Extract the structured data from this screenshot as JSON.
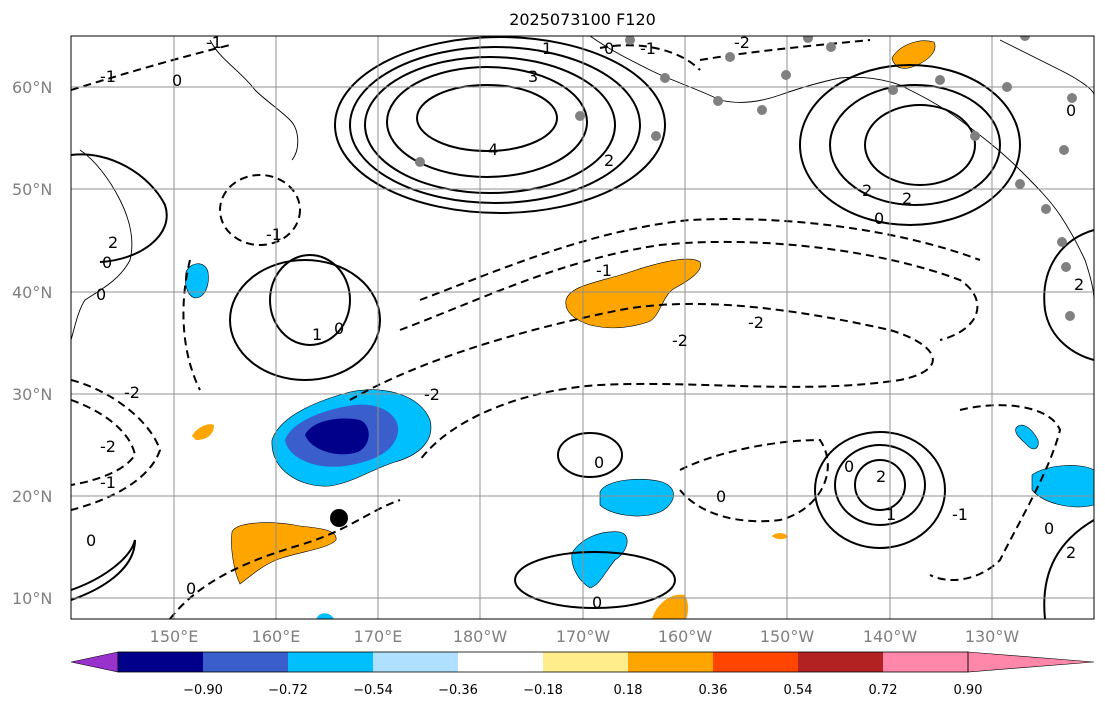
{
  "title": "2025073100 F120",
  "map": {
    "region": "North Pacific",
    "lon_labels": [
      "150°E",
      "160°E",
      "170°E",
      "180°W",
      "170°W",
      "160°W",
      "150°W",
      "140°W",
      "130°W"
    ],
    "lat_labels": [
      "10°N",
      "20°N",
      "30°N",
      "40°N",
      "50°N",
      "60°N"
    ],
    "extent": {
      "lon_min": 140,
      "lon_max": 240,
      "lat_min": 8,
      "lat_max": 65
    },
    "contour_labels": {
      "n4": "4",
      "n3": "3",
      "n2": "2",
      "n1": "1",
      "n0": "0",
      "m1": "-1",
      "m2": "-2"
    },
    "grid_color": "#909090",
    "tc_marker": {
      "lon": 166,
      "lat": 17.8,
      "color": "#000000"
    },
    "station_color": "#808080"
  },
  "colorbar": {
    "colors": [
      "#9932cc",
      "#00008b",
      "#3a5fcd",
      "#00bfff",
      "#b0e0ff",
      "#ffffff",
      "#ffec8b",
      "#ffa500",
      "#ff4500",
      "#b22222",
      "#ff88aa"
    ],
    "tick_labels": [
      "−0.90",
      "−0.72",
      "−0.54",
      "−0.36",
      "−0.18",
      "0.18",
      "0.36",
      "0.54",
      "0.72",
      "0.90"
    ]
  }
}
